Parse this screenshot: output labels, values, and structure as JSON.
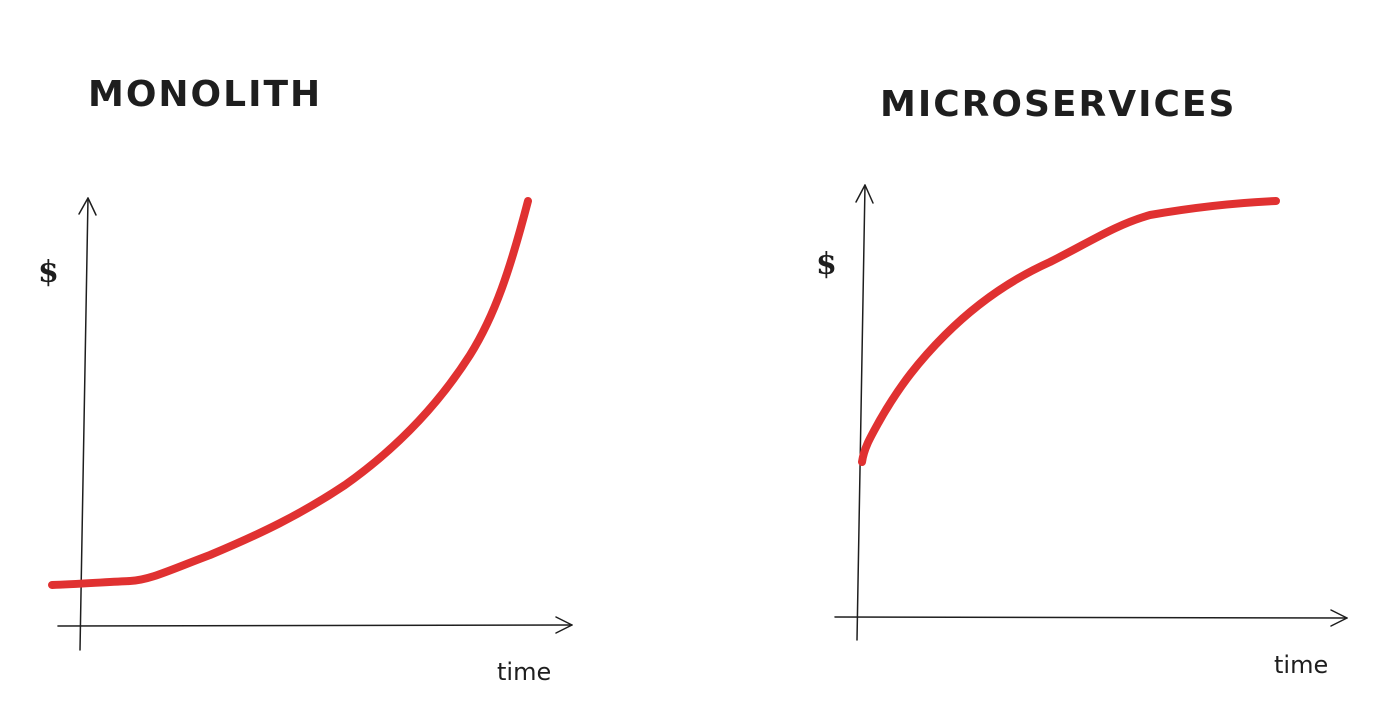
{
  "colors": {
    "curve": "#e03131",
    "ink": "#1e1e1e",
    "background": "#ffffff"
  },
  "panels": [
    {
      "title": "MONOLITH",
      "y_label": "$",
      "x_label": "time",
      "curve_shape": "exponential growth, flat start then steep rise"
    },
    {
      "title": "MICROSERVICES",
      "y_label": "$",
      "x_label": "time",
      "curve_shape": "logarithmic growth, higher start then flattening"
    }
  ]
}
